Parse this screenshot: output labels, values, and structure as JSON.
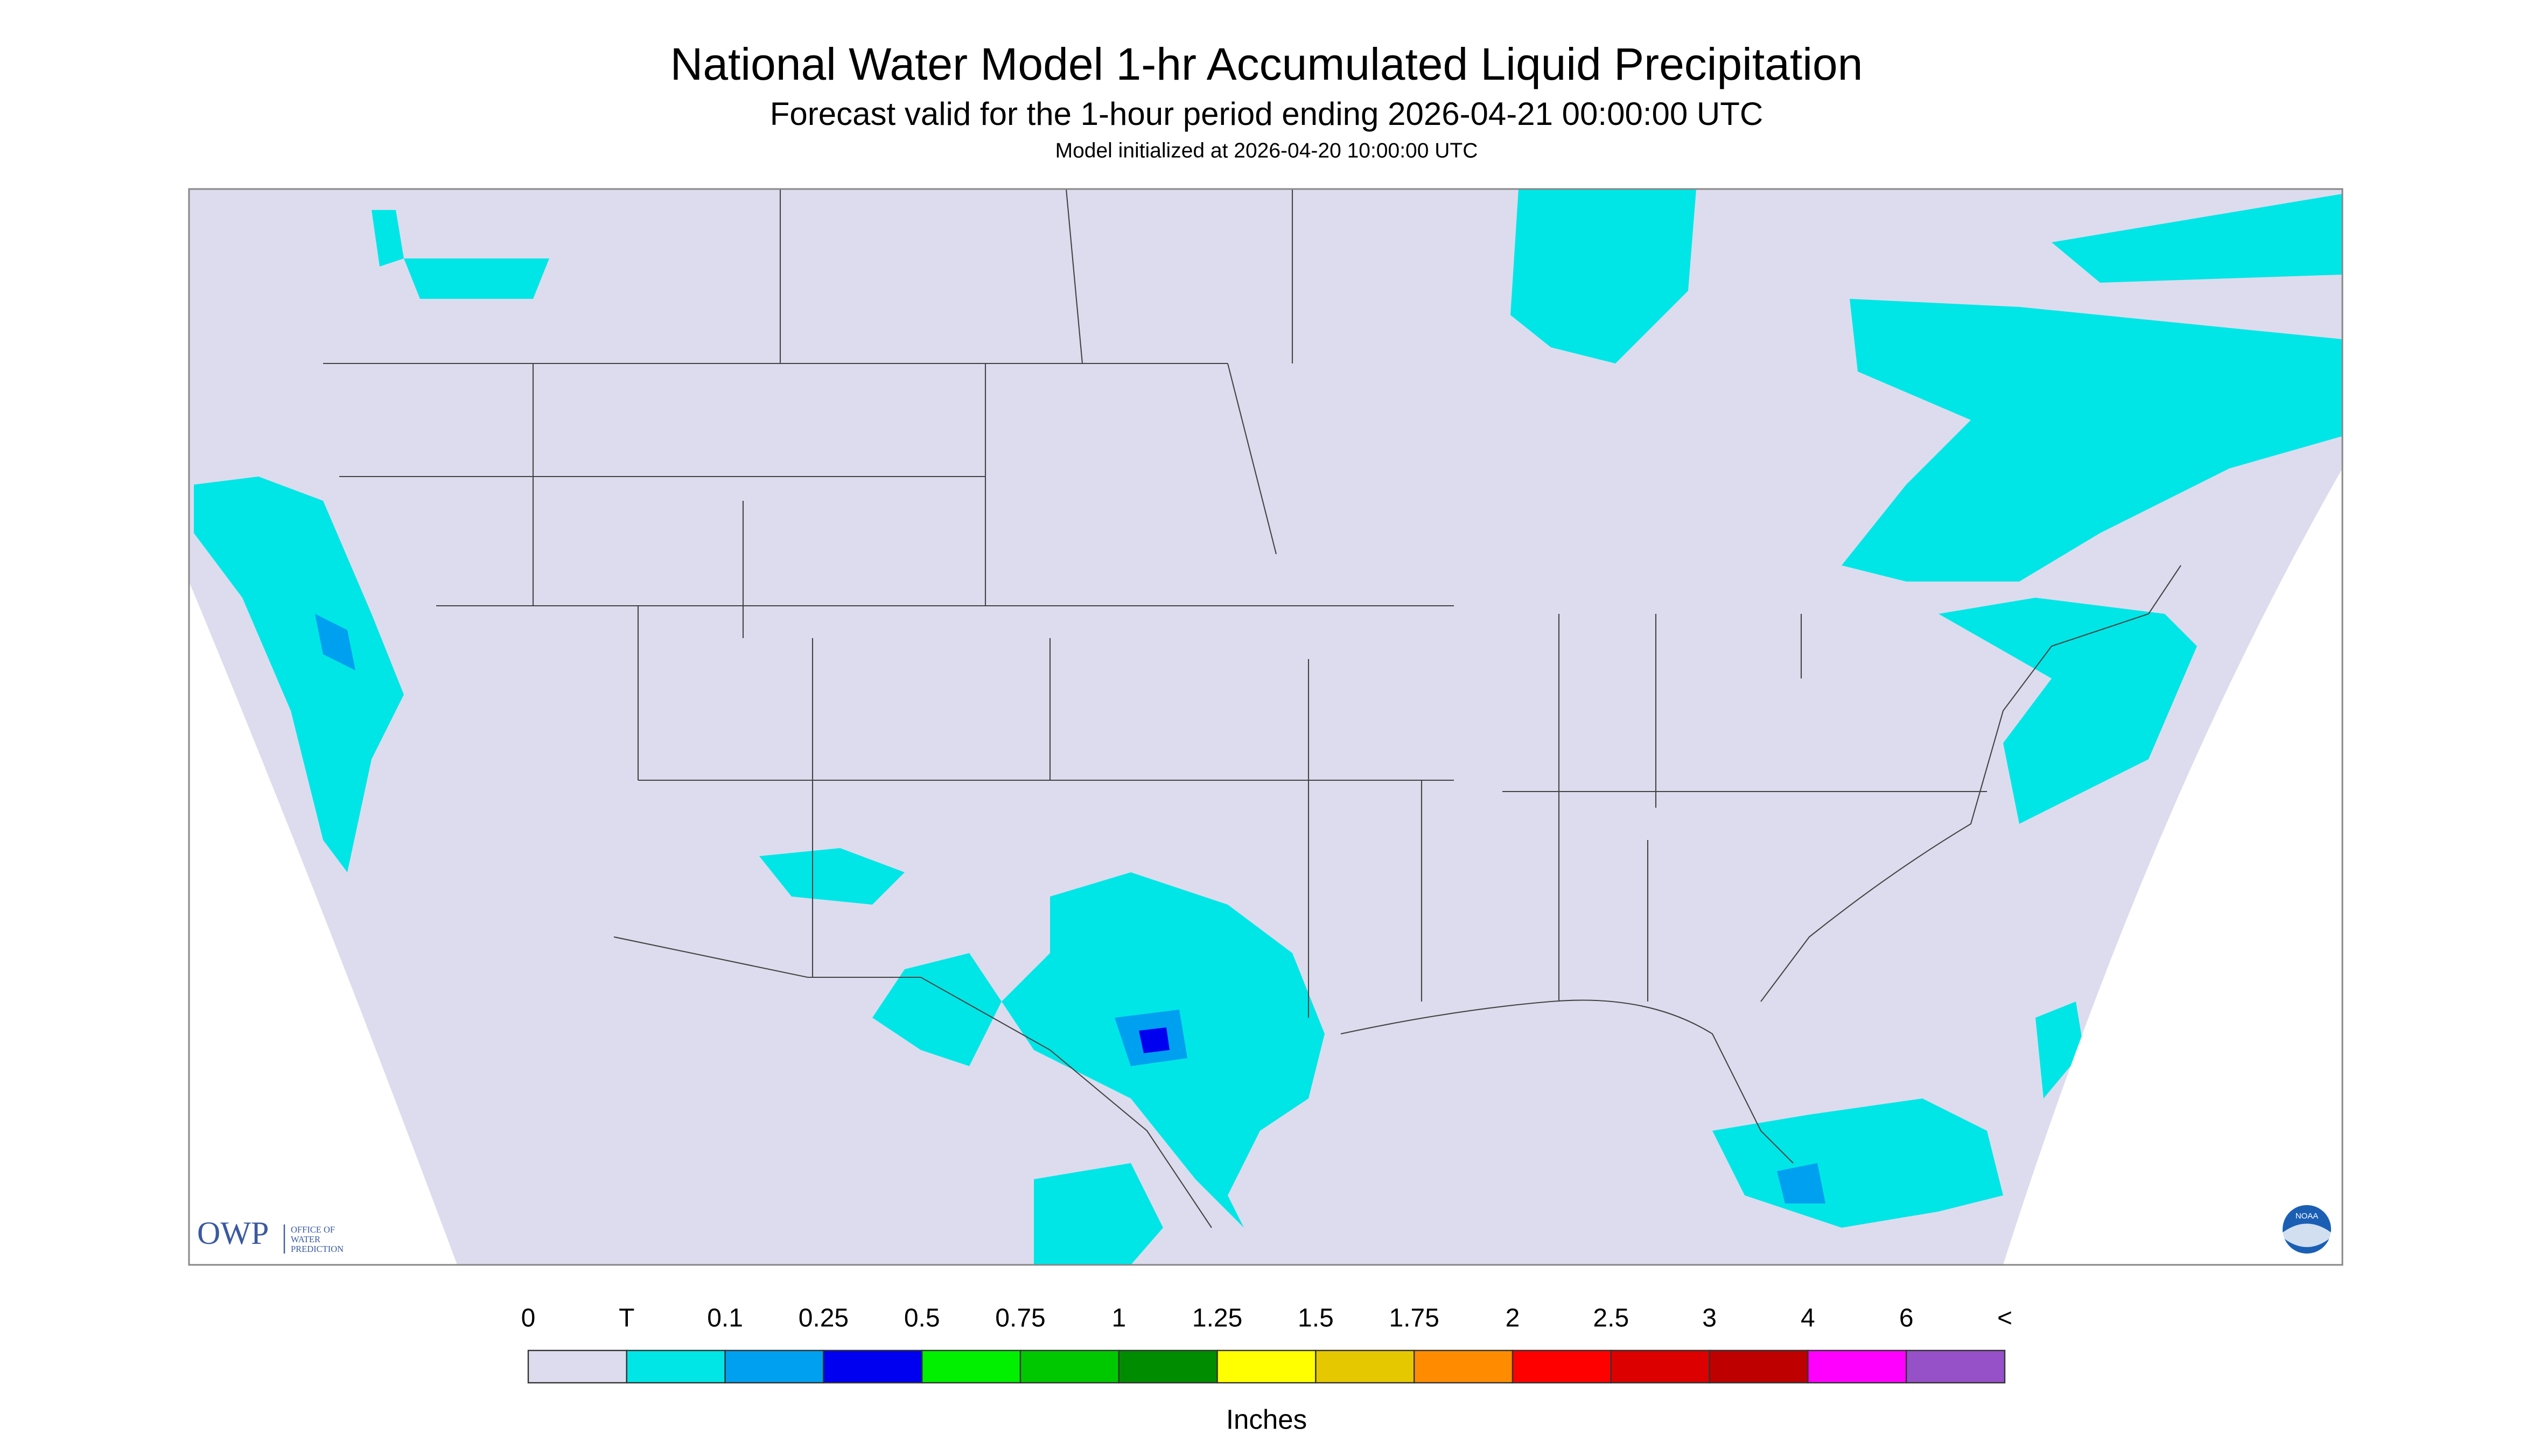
{
  "header": {
    "title": "National Water Model 1-hr Accumulated Liquid Precipitation",
    "subtitle": "Forecast valid for the 1-hour period ending 2026-04-21 00:00:00 UTC",
    "init": "Model initialized at 2026-04-20 10:00:00 UTC"
  },
  "legend": {
    "labels": [
      "0",
      "T",
      "0.1",
      "0.25",
      "0.5",
      "0.75",
      "1",
      "1.25",
      "1.5",
      "1.75",
      "2",
      "2.5",
      "3",
      "4",
      "6",
      "<"
    ],
    "colors": [
      "#dcdcee",
      "#00e6e6",
      "#00a0f0",
      "#0000f0",
      "#00f000",
      "#00c800",
      "#008c00",
      "#ffff00",
      "#e6c800",
      "#ff8c00",
      "#ff0000",
      "#dc0000",
      "#be0000",
      "#ff00ff",
      "#9650c8"
    ],
    "unit": "Inches"
  },
  "logo": {
    "name": "OWP",
    "lines": [
      "OFFICE OF",
      "WATER",
      "PREDICTION"
    ],
    "badge": "NOAA"
  }
}
